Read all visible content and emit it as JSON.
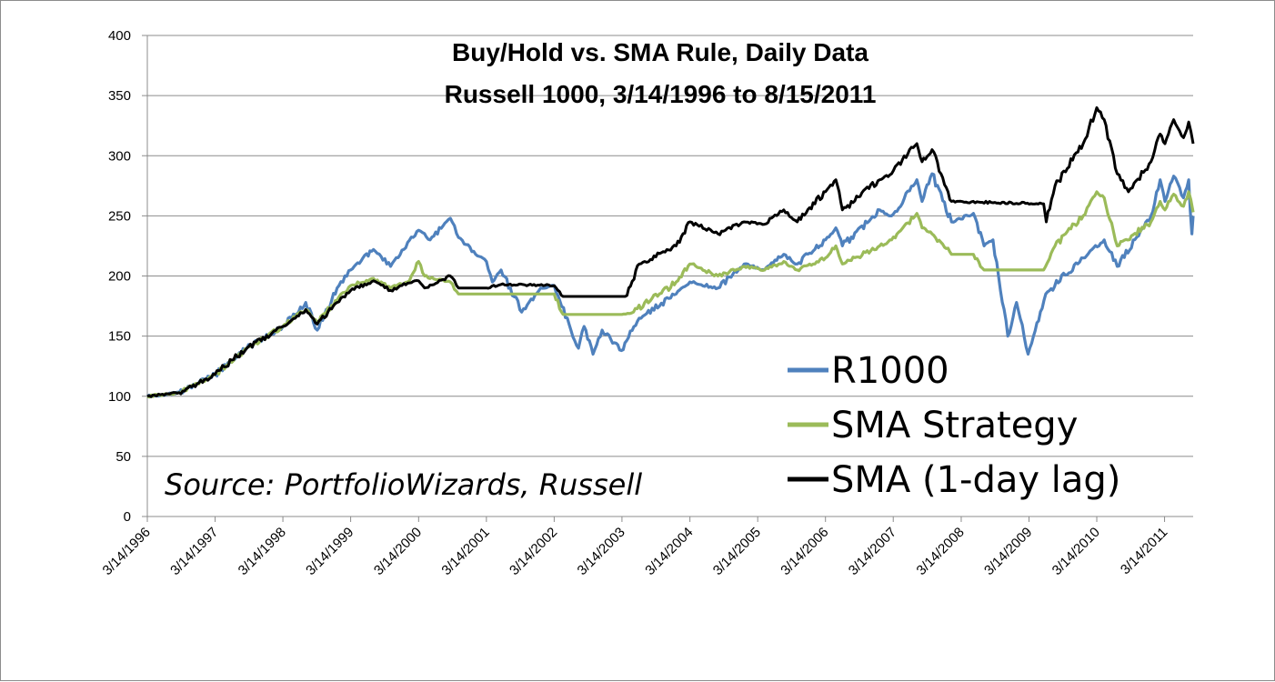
{
  "chart_data": {
    "type": "line",
    "title": "Buy/Hold vs. SMA Rule, Daily Data",
    "subtitle": "Russell 1000, 3/14/1996 to 8/15/2011",
    "annotation": "Source: PortfolioWizards, Russell",
    "ylim": [
      0,
      400
    ],
    "y_ticks": [
      0,
      50,
      100,
      150,
      200,
      250,
      300,
      350,
      400
    ],
    "x_range": [
      "1996-03-14",
      "2011-08-15"
    ],
    "x_tick_labels": [
      "3/14/1996",
      "3/14/1997",
      "3/14/1998",
      "3/14/1999",
      "3/14/2000",
      "3/14/2001",
      "3/14/2002",
      "3/14/2003",
      "3/14/2004",
      "3/14/2005",
      "3/14/2006",
      "3/14/2007",
      "3/14/2008",
      "3/14/2009",
      "3/14/2010",
      "3/14/2011"
    ],
    "x_tick_dates": [
      "1996-03-14",
      "1997-03-14",
      "1998-03-14",
      "1999-03-14",
      "2000-03-14",
      "2001-03-14",
      "2002-03-14",
      "2003-03-14",
      "2004-03-14",
      "2005-03-14",
      "2006-03-14",
      "2007-03-14",
      "2008-03-14",
      "2009-03-14",
      "2010-03-14",
      "2011-03-14"
    ],
    "grid": "horizontal",
    "legend_position": "bottom-right",
    "series": [
      {
        "name": "R1000",
        "color": "#4f81bd",
        "points": [
          [
            "1996-03-14",
            100
          ],
          [
            "1996-09-01",
            103
          ],
          [
            "1997-03-14",
            118
          ],
          [
            "1997-09-01",
            140
          ],
          [
            "1998-03-14",
            158
          ],
          [
            "1998-07-15",
            178
          ],
          [
            "1998-09-15",
            155
          ],
          [
            "1998-12-31",
            190
          ],
          [
            "1999-03-14",
            205
          ],
          [
            "1999-07-15",
            222
          ],
          [
            "1999-10-15",
            208
          ],
          [
            "2000-01-15",
            228
          ],
          [
            "2000-03-14",
            238
          ],
          [
            "2000-05-15",
            230
          ],
          [
            "2000-09-01",
            248
          ],
          [
            "2000-10-15",
            232
          ],
          [
            "2001-01-15",
            218
          ],
          [
            "2001-03-14",
            212
          ],
          [
            "2001-04-15",
            195
          ],
          [
            "2001-06-01",
            205
          ],
          [
            "2001-09-20",
            170
          ],
          [
            "2001-12-31",
            190
          ],
          [
            "2002-03-14",
            192
          ],
          [
            "2002-07-23",
            140
          ],
          [
            "2002-08-22",
            158
          ],
          [
            "2002-10-09",
            135
          ],
          [
            "2002-11-27",
            155
          ],
          [
            "2003-03-11",
            138
          ],
          [
            "2003-06-15",
            165
          ],
          [
            "2003-12-31",
            185
          ],
          [
            "2004-03-14",
            195
          ],
          [
            "2004-08-12",
            190
          ],
          [
            "2004-12-31",
            210
          ],
          [
            "2005-04-20",
            205
          ],
          [
            "2005-08-01",
            218
          ],
          [
            "2005-10-13",
            210
          ],
          [
            "2006-03-14",
            230
          ],
          [
            "2006-05-09",
            240
          ],
          [
            "2006-06-13",
            225
          ],
          [
            "2006-12-31",
            255
          ],
          [
            "2007-03-05",
            250
          ],
          [
            "2007-07-19",
            280
          ],
          [
            "2007-08-16",
            262
          ],
          [
            "2007-10-09",
            285
          ],
          [
            "2008-01-22",
            245
          ],
          [
            "2008-05-19",
            252
          ],
          [
            "2008-07-15",
            225
          ],
          [
            "2008-09-01",
            230
          ],
          [
            "2008-11-20",
            150
          ],
          [
            "2009-01-06",
            178
          ],
          [
            "2009-03-09",
            135
          ],
          [
            "2009-06-12",
            185
          ],
          [
            "2009-12-31",
            215
          ],
          [
            "2010-04-23",
            230
          ],
          [
            "2010-07-02",
            208
          ],
          [
            "2010-12-31",
            250
          ],
          [
            "2011-02-18",
            280
          ],
          [
            "2011-03-16",
            262
          ],
          [
            "2011-05-02",
            283
          ],
          [
            "2011-06-24",
            265
          ],
          [
            "2011-07-22",
            280
          ],
          [
            "2011-08-08",
            235
          ],
          [
            "2011-08-15",
            250
          ]
        ]
      },
      {
        "name": "SMA Strategy",
        "color": "#9bbb59",
        "points": [
          [
            "1996-03-14",
            100
          ],
          [
            "1996-09-01",
            103
          ],
          [
            "1997-03-14",
            118
          ],
          [
            "1997-09-01",
            140
          ],
          [
            "1998-03-14",
            158
          ],
          [
            "1998-07-15",
            172
          ],
          [
            "1998-09-15",
            162
          ],
          [
            "1998-12-31",
            180
          ],
          [
            "1999-03-14",
            192
          ],
          [
            "1999-07-15",
            198
          ],
          [
            "1999-10-15",
            190
          ],
          [
            "2000-01-15",
            195
          ],
          [
            "2000-03-14",
            212
          ],
          [
            "2000-04-15",
            200
          ],
          [
            "2000-09-01",
            195
          ],
          [
            "2000-10-15",
            185
          ],
          [
            "2001-03-14",
            185
          ],
          [
            "2002-03-14",
            185
          ],
          [
            "2002-05-01",
            168
          ],
          [
            "2003-03-14",
            168
          ],
          [
            "2003-05-15",
            170
          ],
          [
            "2003-12-31",
            195
          ],
          [
            "2004-03-14",
            210
          ],
          [
            "2004-08-12",
            200
          ],
          [
            "2004-12-31",
            208
          ],
          [
            "2005-04-20",
            205
          ],
          [
            "2005-08-01",
            212
          ],
          [
            "2005-10-13",
            205
          ],
          [
            "2006-03-14",
            215
          ],
          [
            "2006-05-09",
            225
          ],
          [
            "2006-06-13",
            210
          ],
          [
            "2006-12-31",
            225
          ],
          [
            "2007-03-05",
            230
          ],
          [
            "2007-07-19",
            252
          ],
          [
            "2007-08-16",
            240
          ],
          [
            "2007-10-09",
            235
          ],
          [
            "2008-01-22",
            218
          ],
          [
            "2008-05-19",
            218
          ],
          [
            "2008-07-15",
            205
          ],
          [
            "2009-06-01",
            205
          ],
          [
            "2009-08-01",
            225
          ],
          [
            "2009-12-31",
            250
          ],
          [
            "2010-03-14",
            270
          ],
          [
            "2010-04-23",
            265
          ],
          [
            "2010-07-02",
            225
          ],
          [
            "2010-12-31",
            245
          ],
          [
            "2011-02-18",
            262
          ],
          [
            "2011-03-16",
            255
          ],
          [
            "2011-05-02",
            268
          ],
          [
            "2011-06-24",
            258
          ],
          [
            "2011-07-22",
            270
          ],
          [
            "2011-08-15",
            253
          ]
        ]
      },
      {
        "name": "SMA (1-day lag)",
        "color": "#000000",
        "points": [
          [
            "1996-03-14",
            100
          ],
          [
            "1996-09-01",
            103
          ],
          [
            "1997-03-14",
            118
          ],
          [
            "1997-09-01",
            140
          ],
          [
            "1998-03-14",
            158
          ],
          [
            "1998-07-15",
            172
          ],
          [
            "1998-09-15",
            160
          ],
          [
            "1998-12-31",
            178
          ],
          [
            "1999-03-14",
            188
          ],
          [
            "1999-07-15",
            196
          ],
          [
            "1999-10-15",
            188
          ],
          [
            "2000-01-15",
            194
          ],
          [
            "2000-03-14",
            196
          ],
          [
            "2000-04-15",
            190
          ],
          [
            "2000-09-01",
            200
          ],
          [
            "2000-10-15",
            190
          ],
          [
            "2001-03-14",
            190
          ],
          [
            "2001-06-01",
            193
          ],
          [
            "2002-03-14",
            192
          ],
          [
            "2002-05-01",
            183
          ],
          [
            "2003-04-01",
            183
          ],
          [
            "2003-06-15",
            210
          ],
          [
            "2003-12-31",
            225
          ],
          [
            "2004-03-14",
            245
          ],
          [
            "2004-08-12",
            235
          ],
          [
            "2004-12-31",
            245
          ],
          [
            "2005-04-20",
            243
          ],
          [
            "2005-08-01",
            255
          ],
          [
            "2005-10-13",
            245
          ],
          [
            "2006-03-14",
            270
          ],
          [
            "2006-05-09",
            280
          ],
          [
            "2006-06-13",
            255
          ],
          [
            "2006-12-31",
            280
          ],
          [
            "2007-03-05",
            285
          ],
          [
            "2007-07-19",
            310
          ],
          [
            "2007-08-16",
            295
          ],
          [
            "2007-10-09",
            305
          ],
          [
            "2008-01-22",
            262
          ],
          [
            "2009-06-01",
            260
          ],
          [
            "2009-06-15",
            245
          ],
          [
            "2009-08-01",
            275
          ],
          [
            "2009-12-31",
            310
          ],
          [
            "2010-03-14",
            340
          ],
          [
            "2010-04-23",
            330
          ],
          [
            "2010-07-02",
            285
          ],
          [
            "2010-09-01",
            270
          ],
          [
            "2010-12-31",
            295
          ],
          [
            "2011-02-18",
            318
          ],
          [
            "2011-03-16",
            310
          ],
          [
            "2011-05-02",
            330
          ],
          [
            "2011-06-24",
            315
          ],
          [
            "2011-07-22",
            328
          ],
          [
            "2011-08-15",
            310
          ]
        ]
      }
    ]
  }
}
